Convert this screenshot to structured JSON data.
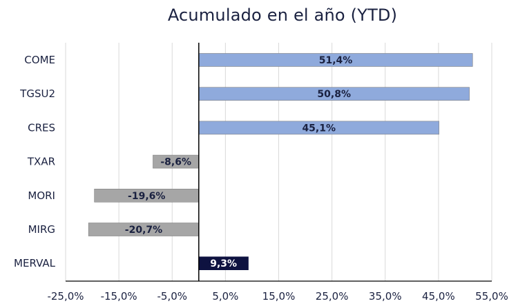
{
  "chart_data": {
    "type": "bar",
    "orientation": "horizontal",
    "title": "Acumulado en el año (YTD)",
    "categories": [
      "COME",
      "TGSU2",
      "CRES",
      "TXAR",
      "MORI",
      "MIRG",
      "MERVAL"
    ],
    "values": [
      51.4,
      50.8,
      45.1,
      -8.6,
      -19.6,
      -20.7,
      9.3
    ],
    "data_labels": [
      "51,4%",
      "50,8%",
      "45,1%",
      "-8,6%",
      "-19,6%",
      "-20,7%",
      "9,3%"
    ],
    "tick_labels": [
      "-25,0%",
      "-15,0%",
      "-5,0%",
      "5,0%",
      "15,0%",
      "25,0%",
      "35,0%",
      "45,0%",
      "55,0%"
    ],
    "tick_values": [
      -25,
      -15,
      -5,
      5,
      15,
      25,
      35,
      45,
      55
    ],
    "xlim": [
      -25,
      55
    ],
    "grid": true,
    "colors": {
      "positive": "#8faadc",
      "negative": "#a6a6a6",
      "benchmark": "#0e1240",
      "text": "#1a2140",
      "label_dark": "#1a2140",
      "label_light": "#ffffff",
      "grid": "#d9d9d9",
      "axis": "#000000"
    },
    "bar_colors": [
      "positive",
      "positive",
      "positive",
      "negative",
      "negative",
      "negative",
      "benchmark"
    ]
  }
}
